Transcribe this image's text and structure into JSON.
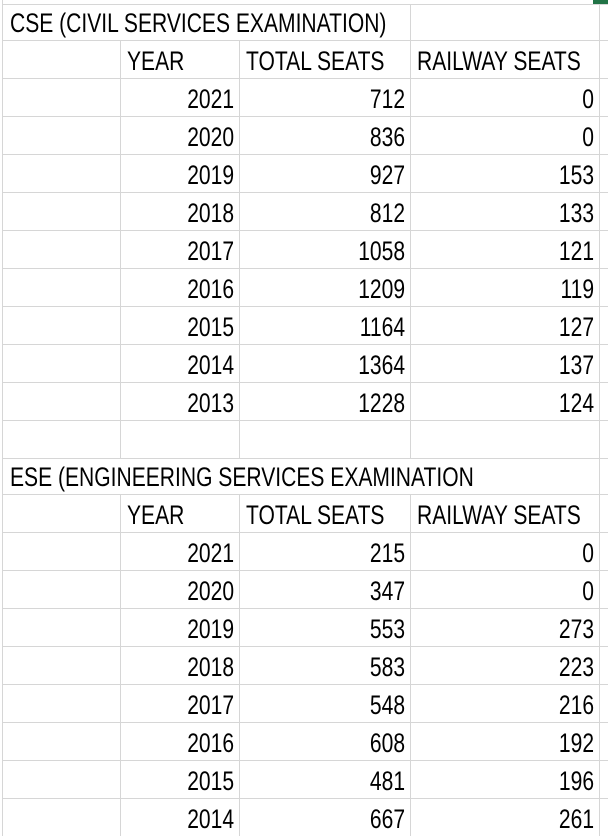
{
  "colors": {
    "background": "#ffffff",
    "gridline": "#d6d6d6",
    "text": "#000000",
    "selection_green": "#217346"
  },
  "tables": [
    {
      "title": "CSE (CIVIL SERVICES EXAMINATION)",
      "columns": [
        "YEAR",
        "TOTAL SEATS",
        "RAILWAY SEATS"
      ],
      "rows": [
        [
          "2021",
          "712",
          "0"
        ],
        [
          "2020",
          "836",
          "0"
        ],
        [
          "2019",
          "927",
          "153"
        ],
        [
          "2018",
          "812",
          "133"
        ],
        [
          "2017",
          "1058",
          "121"
        ],
        [
          "2016",
          "1209",
          "119"
        ],
        [
          "2015",
          "1164",
          "127"
        ],
        [
          "2014",
          "1364",
          "137"
        ],
        [
          "2013",
          "1228",
          "124"
        ]
      ]
    },
    {
      "title": "ESE (ENGINEERING SERVICES EXAMINATION",
      "columns": [
        "YEAR",
        "TOTAL SEATS",
        "RAILWAY SEATS"
      ],
      "rows": [
        [
          "2021",
          "215",
          "0"
        ],
        [
          "2020",
          "347",
          "0"
        ],
        [
          "2019",
          "553",
          "273"
        ],
        [
          "2018",
          "583",
          "223"
        ],
        [
          "2017",
          "548",
          "216"
        ],
        [
          "2016",
          "608",
          "192"
        ],
        [
          "2015",
          "481",
          "196"
        ],
        [
          "2014",
          "667",
          "261"
        ]
      ]
    }
  ]
}
